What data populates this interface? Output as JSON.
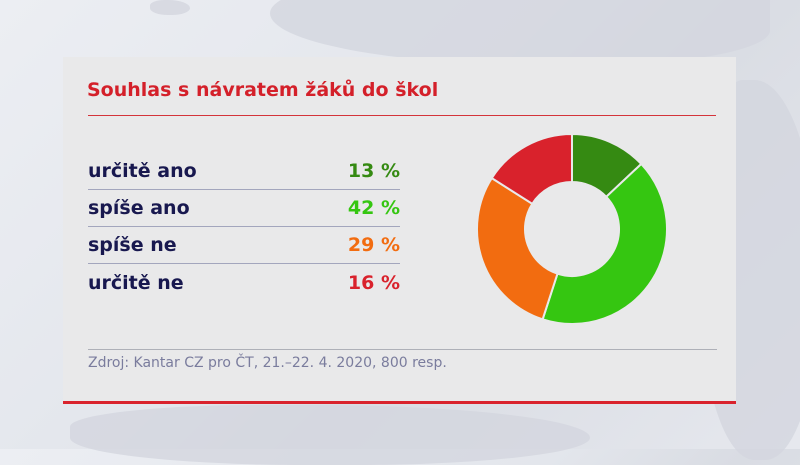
{
  "title": "Souhlas s návratem žáků do škol",
  "rows": [
    {
      "label": "určitě ano",
      "value": "13 %",
      "color": "#358a12"
    },
    {
      "label": "spíše ano",
      "value": "42 %",
      "color": "#35c611"
    },
    {
      "label": "spíše ne",
      "value": "29 %",
      "color": "#f26c10"
    },
    {
      "label": "určitě ne",
      "value": "16 %",
      "color": "#d9222c"
    }
  ],
  "source": "Zdroj: Kantar CZ pro ČT, 21.–22. 4. 2020, 800 resp.",
  "colors": {
    "title": "#d4202a",
    "label": "#18184f",
    "source": "#7a7c9d",
    "accent_rule": "#d9232d"
  },
  "chart_data": {
    "type": "pie",
    "variant": "donut",
    "title": "Souhlas s návratem žáků do škol",
    "categories": [
      "určitě ano",
      "spíše ano",
      "spíše ne",
      "určitě ne"
    ],
    "values": [
      13,
      42,
      29,
      16
    ],
    "unit": "%",
    "colors": [
      "#358a12",
      "#35c611",
      "#f26c10",
      "#d9222c"
    ],
    "start_angle": "12 o'clock, clockwise",
    "legend_position": "left (table)",
    "source": "Zdroj: Kantar CZ pro ČT, 21.–22. 4. 2020, 800 resp."
  }
}
